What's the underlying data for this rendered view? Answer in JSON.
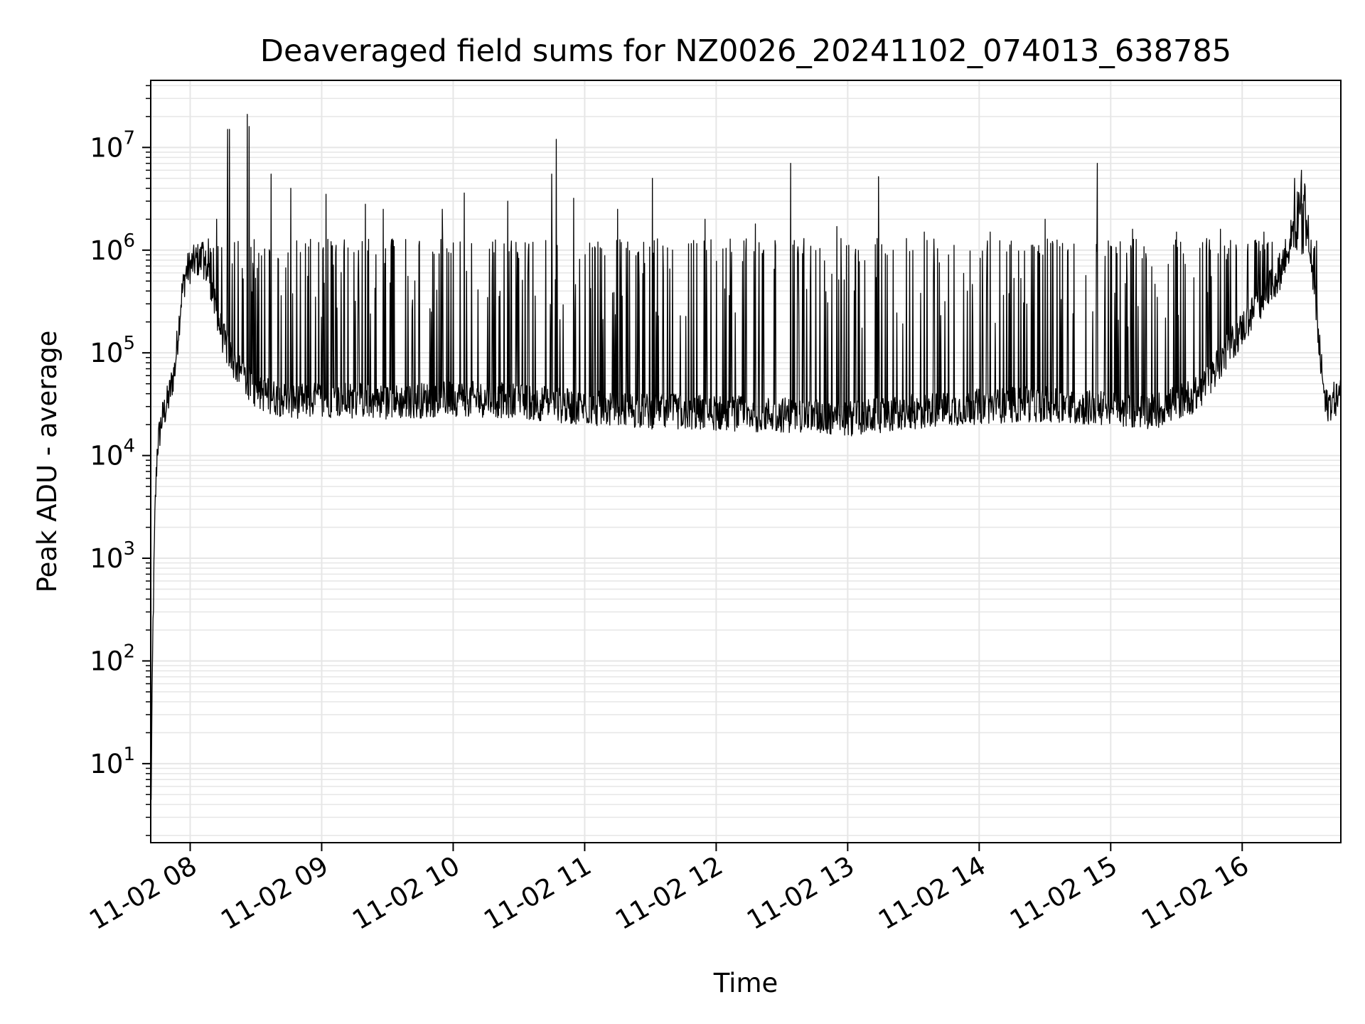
{
  "chart_data": {
    "type": "line",
    "title": "Deaveraged field sums for NZ0026_20241102_074013_638785",
    "xlabel": "Time",
    "ylabel": "Peak ADU - average",
    "xlim": [
      "2024-11-02 07:42",
      "2024-11-02 16:45"
    ],
    "ylim": [
      1.7,
      45000000
    ],
    "yscale": "log",
    "grid": true,
    "legend": "none",
    "line_color": "#000000",
    "grid_color": "#e6e6e6",
    "x_ticks": [
      {
        "value": "2024-11-02 08:00",
        "label": "11-02 08"
      },
      {
        "value": "2024-11-02 09:00",
        "label": "11-02 09"
      },
      {
        "value": "2024-11-02 10:00",
        "label": "11-02 10"
      },
      {
        "value": "2024-11-02 11:00",
        "label": "11-02 11"
      },
      {
        "value": "2024-11-02 12:00",
        "label": "11-02 12"
      },
      {
        "value": "2024-11-02 13:00",
        "label": "11-02 13"
      },
      {
        "value": "2024-11-02 14:00",
        "label": "11-02 14"
      },
      {
        "value": "2024-11-02 15:00",
        "label": "11-02 15"
      },
      {
        "value": "2024-11-02 16:00",
        "label": "11-02 16"
      }
    ],
    "y_ticks": [
      {
        "value": 10,
        "base": "10",
        "exp": "1"
      },
      {
        "value": 100,
        "base": "10",
        "exp": "2"
      },
      {
        "value": 1000,
        "base": "10",
        "exp": "3"
      },
      {
        "value": 10000,
        "base": "10",
        "exp": "4"
      },
      {
        "value": 100000,
        "base": "10",
        "exp": "5"
      },
      {
        "value": 1000000,
        "base": "10",
        "exp": "6"
      },
      {
        "value": 10000000,
        "base": "10",
        "exp": "7"
      }
    ],
    "series": [
      {
        "baseline": {
          "x": [
            "2024-11-02 07:42",
            "2024-11-02 07:43",
            "2024-11-02 07:44",
            "2024-11-02 07:45",
            "2024-11-02 07:47",
            "2024-11-02 07:50",
            "2024-11-02 07:53",
            "2024-11-02 07:56",
            "2024-11-02 07:58",
            "2024-11-02 08:00",
            "2024-11-02 08:03",
            "2024-11-02 08:06",
            "2024-11-02 08:09",
            "2024-11-02 08:11",
            "2024-11-02 08:13",
            "2024-11-02 08:16",
            "2024-11-02 08:20",
            "2024-11-02 08:25",
            "2024-11-02 08:30",
            "2024-11-02 08:40",
            "2024-11-02 08:50",
            "2024-11-02 09:00",
            "2024-11-02 09:30",
            "2024-11-02 10:00",
            "2024-11-02 10:30",
            "2024-11-02 11:00",
            "2024-11-02 11:30",
            "2024-11-02 12:00",
            "2024-11-02 12:30",
            "2024-11-02 13:00",
            "2024-11-02 13:20",
            "2024-11-02 13:40",
            "2024-11-02 14:00",
            "2024-11-02 14:30",
            "2024-11-02 15:00",
            "2024-11-02 15:20",
            "2024-11-02 15:40",
            "2024-11-02 15:55",
            "2024-11-02 16:05",
            "2024-11-02 16:15",
            "2024-11-02 16:20",
            "2024-11-02 16:25",
            "2024-11-02 16:28",
            "2024-11-02 16:30",
            "2024-11-02 16:32",
            "2024-11-02 16:35",
            "2024-11-02 16:38",
            "2024-11-02 16:42",
            "2024-11-02 16:45"
          ],
          "y": [
            2,
            200,
            3000,
            12000,
            22000,
            35000,
            70000,
            350000,
            600000,
            700000,
            800000,
            800000,
            550000,
            300000,
            200000,
            120000,
            80000,
            55000,
            42000,
            36000,
            34000,
            35000,
            33000,
            36000,
            34000,
            29000,
            27000,
            26000,
            25000,
            23000,
            25000,
            28000,
            30000,
            32000,
            28000,
            27000,
            40000,
            120000,
            250000,
            500000,
            800000,
            2500000,
            3500000,
            2000000,
            700000,
            120000,
            30000,
            35000,
            40000
          ]
        },
        "spikes": {
          "x": [
            "2024-11-02 07:42",
            "2024-11-02 08:12",
            "2024-11-02 08:17",
            "2024-11-02 08:18",
            "2024-11-02 08:26",
            "2024-11-02 08:27",
            "2024-11-02 08:37",
            "2024-11-02 08:46",
            "2024-11-02 09:02",
            "2024-11-02 09:20",
            "2024-11-02 09:28",
            "2024-11-02 09:55",
            "2024-11-02 10:05",
            "2024-11-02 10:25",
            "2024-11-02 10:45",
            "2024-11-02 10:47",
            "2024-11-02 10:55",
            "2024-11-02 11:15",
            "2024-11-02 11:31",
            "2024-11-02 11:55",
            "2024-11-02 12:18",
            "2024-11-02 12:34",
            "2024-11-02 12:55",
            "2024-11-02 13:14",
            "2024-11-02 13:35",
            "2024-11-02 14:05",
            "2024-11-02 14:30",
            "2024-11-02 14:54",
            "2024-11-02 15:10",
            "2024-11-02 15:30",
            "2024-11-02 15:50",
            "2024-11-02 16:10",
            "2024-11-02 16:24",
            "2024-11-02 16:27"
          ],
          "y": [
            170000,
            2000000,
            15000000,
            15000000,
            21000000,
            16000000,
            5500000,
            4000000,
            3500000,
            2800000,
            2500000,
            2500000,
            3600000,
            3000000,
            5500000,
            12000000,
            3200000,
            2500000,
            5000000,
            2000000,
            1800000,
            7000000,
            1700000,
            5200000,
            1500000,
            1500000,
            2000000,
            7000000,
            1600000,
            1500000,
            1600000,
            1500000,
            5000000,
            6000000
          ]
        }
      }
    ]
  }
}
